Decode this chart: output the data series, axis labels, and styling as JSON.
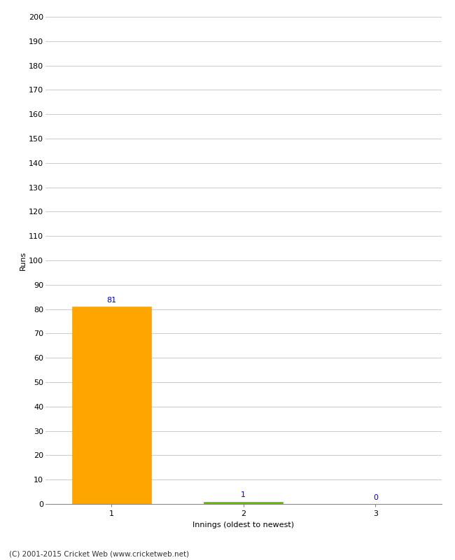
{
  "categories": [
    "1",
    "2",
    "3"
  ],
  "values": [
    81,
    1,
    0
  ],
  "bar_colors": [
    "#FFA500",
    "#66BB00",
    "#66BB00"
  ],
  "value_labels": [
    "81",
    "1",
    "0"
  ],
  "value_label_color": "#0000CC",
  "ylabel": "Runs",
  "xlabel": "Innings (oldest to newest)",
  "ylim": [
    0,
    200
  ],
  "yticks": [
    0,
    10,
    20,
    30,
    40,
    50,
    60,
    70,
    80,
    90,
    100,
    110,
    120,
    130,
    140,
    150,
    160,
    170,
    180,
    190,
    200
  ],
  "background_color": "#FFFFFF",
  "grid_color": "#CCCCCC",
  "footer": "(C) 2001-2015 Cricket Web (www.cricketweb.net)",
  "bar_width": 0.6
}
